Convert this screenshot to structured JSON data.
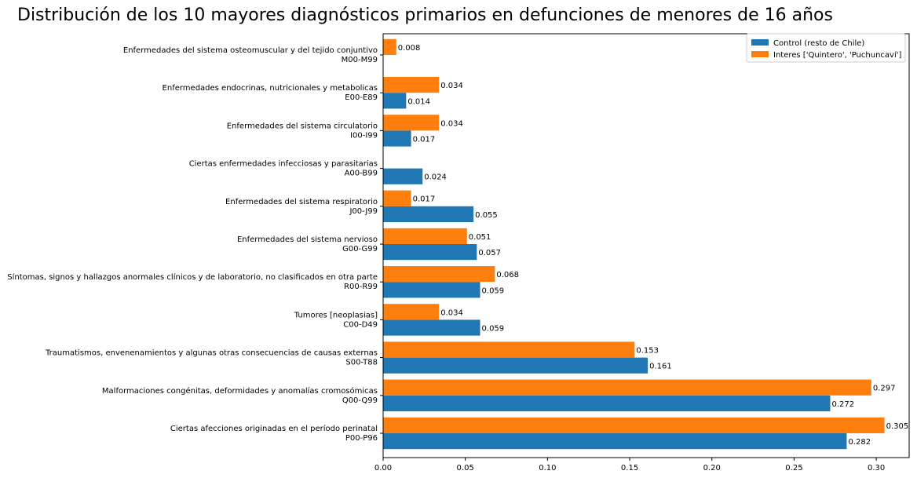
{
  "chart_data": {
    "type": "bar",
    "orientation": "horizontal",
    "title": "Distribución de los 10 mayores diagnósticos primarios en defunciones de menores de 16 años",
    "xlabel": "",
    "ylabel": "",
    "xlim": [
      0,
      0.32
    ],
    "xticks": [
      "0.00",
      "0.05",
      "0.10",
      "0.15",
      "0.20",
      "0.25",
      "0.30"
    ],
    "xtick_values": [
      0,
      0.05,
      0.1,
      0.15,
      0.2,
      0.25,
      0.3
    ],
    "grid": false,
    "legend_position": "top-right",
    "categories": [
      {
        "label": "Ciertas afecciones originadas en el período perinatal",
        "code": "P00-P96"
      },
      {
        "label": "Malformaciones congénitas, deformidades y anomalías cromosómicas",
        "code": "Q00-Q99"
      },
      {
        "label": "Traumatismos, envenenamientos y algunas otras consecuencias de causas externas",
        "code": "S00-T88"
      },
      {
        "label": "Tumores [neoplasias]",
        "code": "C00-D49"
      },
      {
        "label": "Síntomas, signos y hallazgos anormales clínicos y de laboratorio, no clasificados en otra parte",
        "code": "R00-R99"
      },
      {
        "label": "Enfermedades del sistema nervioso",
        "code": "G00-G99"
      },
      {
        "label": "Enfermedades del sistema respiratorio",
        "code": "J00-J99"
      },
      {
        "label": "Ciertas enfermedades infecciosas y parasitarias",
        "code": "A00-B99"
      },
      {
        "label": "Enfermedades del sistema circulatorio",
        "code": "I00-I99"
      },
      {
        "label": "Enfermedades endocrinas, nutricionales y metabolicas",
        "code": "E00-E89"
      },
      {
        "label": "Enfermedades del sistema osteomuscular y del tejido conjuntivo",
        "code": "M00-M99"
      }
    ],
    "series": [
      {
        "name": "Control (resto de Chile)",
        "color": "#1f77b4",
        "values": [
          0.282,
          0.272,
          0.161,
          0.059,
          0.059,
          0.057,
          0.055,
          0.024,
          0.017,
          0.014,
          null
        ],
        "labels": [
          "0.282",
          "0.272",
          "0.161",
          "0.059",
          "0.059",
          "0.057",
          "0.055",
          "0.024",
          "0.017",
          "0.014",
          ""
        ]
      },
      {
        "name": "Interes ['Quintero', 'Puchuncaví']",
        "color": "#ff7f0e",
        "values": [
          0.305,
          0.297,
          0.153,
          0.034,
          0.068,
          0.051,
          0.017,
          null,
          0.034,
          0.034,
          0.008
        ],
        "labels": [
          "0.305",
          "0.297",
          "0.153",
          "0.034",
          "0.068",
          "0.051",
          "0.017",
          "",
          "0.034",
          "0.034",
          "0.008"
        ]
      }
    ]
  }
}
